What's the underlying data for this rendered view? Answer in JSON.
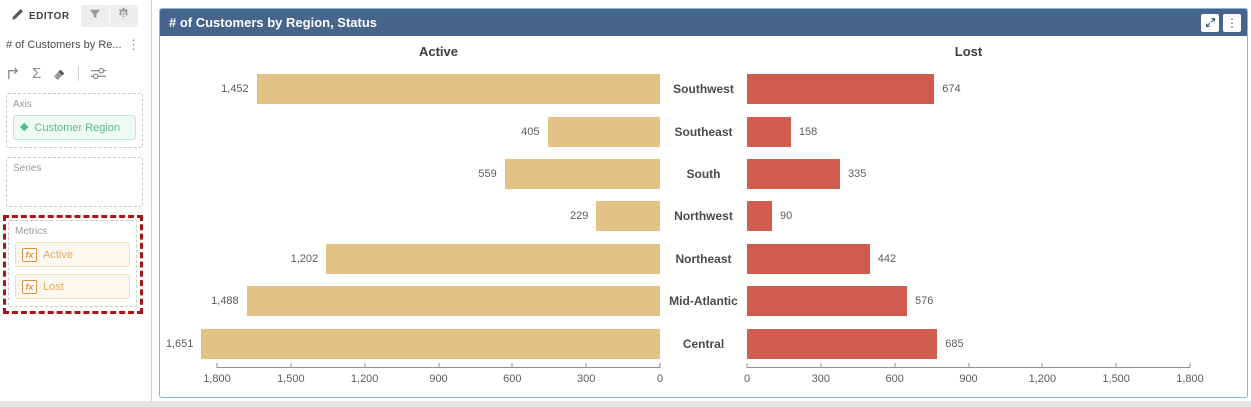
{
  "icons": {
    "sigma": "Σ",
    "kebab": "⋮",
    "diamond": "◆",
    "fx": "fx"
  },
  "sidebar": {
    "tabs": {
      "editor_label": "EDITOR"
    },
    "panel_title": "# of Customers by Re...",
    "sections": {
      "axis_label": "Axis",
      "axis_field": "Customer Region",
      "series_label": "Series",
      "metrics_label": "Metrics",
      "metric_1": "Active",
      "metric_2": "Lost"
    }
  },
  "chart": {
    "title": "# of Customers by Region, Status"
  },
  "chart_data": {
    "type": "bar",
    "subtype": "diverging-horizontal-butterfly",
    "title": "# of Customers by Region, Status",
    "categories": [
      "Southwest",
      "Southeast",
      "South",
      "Northwest",
      "Northeast",
      "Mid-Atlantic",
      "Central"
    ],
    "series": [
      {
        "name": "Active",
        "side": "left",
        "color": "#e2c285",
        "values": [
          1452,
          405,
          559,
          229,
          1202,
          1488,
          1651
        ]
      },
      {
        "name": "Lost",
        "side": "right",
        "color": "#cf5c4c",
        "values": [
          674,
          158,
          335,
          90,
          442,
          576,
          685
        ]
      }
    ],
    "axis_ticks": [
      0,
      300,
      600,
      900,
      1200,
      1500,
      1800
    ],
    "xlim": [
      0,
      1800
    ],
    "value_labels": true,
    "grid": false,
    "legend_position": "column-headers"
  }
}
